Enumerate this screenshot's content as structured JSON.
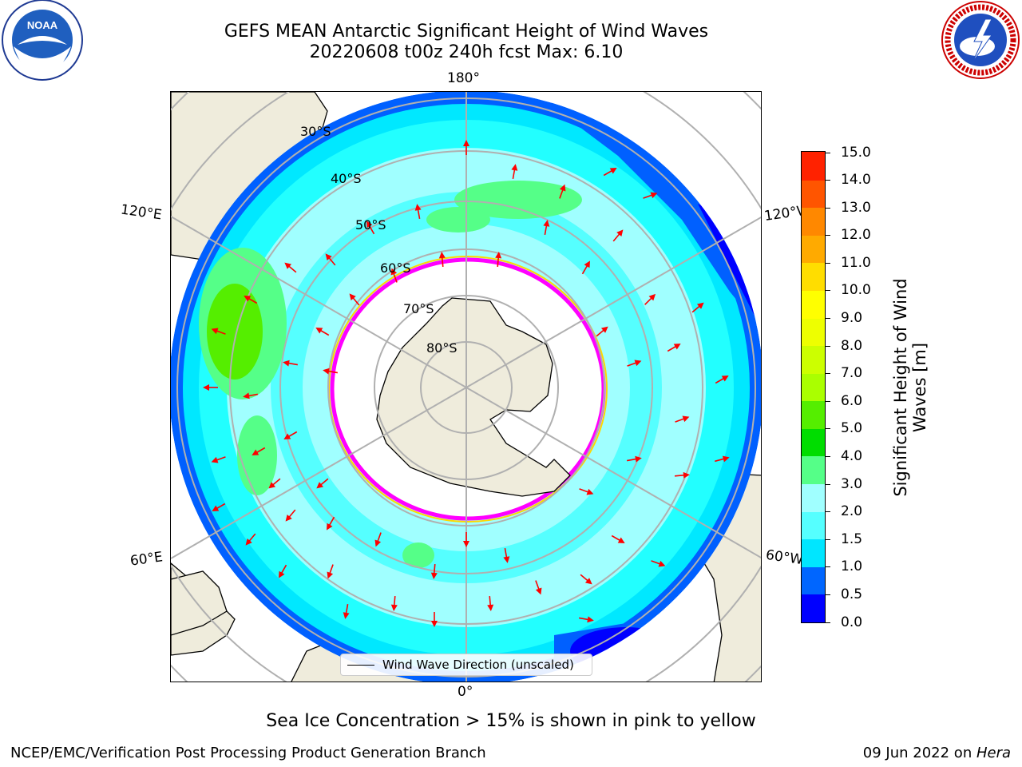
{
  "title": {
    "line1": "GEFS MEAN Antarctic Significant Height of Wind Waves",
    "line2": "20220608 t00z 240h fcst   Max: 6.10"
  },
  "logos": {
    "left": {
      "text": "NOAA",
      "ring_text": "NATIONAL OCEANIC AND ATMOSPHERIC ADMINISTRATION • U.S. DEPARTMENT OF COMMERCE"
    },
    "right": {
      "ring_text": "NATIONAL WEATHER SERVICE"
    }
  },
  "map": {
    "projection": "south-polar-stereographic",
    "longitude_labels": {
      "top": "180°",
      "bottom": "0°",
      "upper_left": "120°E",
      "lower_left": "60°E",
      "upper_right": "120°W",
      "lower_right": "60°W"
    },
    "latitude_labels": [
      "30°S",
      "40°S",
      "50°S",
      "60°S",
      "70°S",
      "80°S"
    ],
    "colors": {
      "land": "#efecdc",
      "ice": "#ffffff",
      "ice_edge": [
        "#ff00ff",
        "#ffd700"
      ],
      "arrows": "#ff0000",
      "grid": "#b0b0b0"
    }
  },
  "legend": {
    "label": "Wind Wave Direction (unscaled)"
  },
  "colorbar": {
    "title": "Significant Height of Wind Waves [m]",
    "tick_labels": [
      "0.0",
      "0.5",
      "1.0",
      "1.5",
      "2.0",
      "3.0",
      "4.0",
      "5.0",
      "6.0",
      "7.0",
      "8.0",
      "9.0",
      "10.0",
      "11.0",
      "12.0",
      "13.0",
      "14.0",
      "15.0"
    ],
    "colors": [
      "#0000ff",
      "#0066ff",
      "#00e6ff",
      "#55ffff",
      "#a0ffff",
      "#55ff88",
      "#00dd00",
      "#55ee00",
      "#aaff00",
      "#ccff00",
      "#eeff00",
      "#ffff00",
      "#ffdd00",
      "#ffaa00",
      "#ff8800",
      "#ff5500",
      "#ff2200"
    ]
  },
  "notes": {
    "ice": "Sea Ice Concentration > 15% is shown in pink to yellow",
    "footer_left": "NCEP/EMC/Verification Post Processing Product Generation Branch",
    "footer_date": "09 Jun 2022 on ",
    "footer_machine": "Hera"
  }
}
